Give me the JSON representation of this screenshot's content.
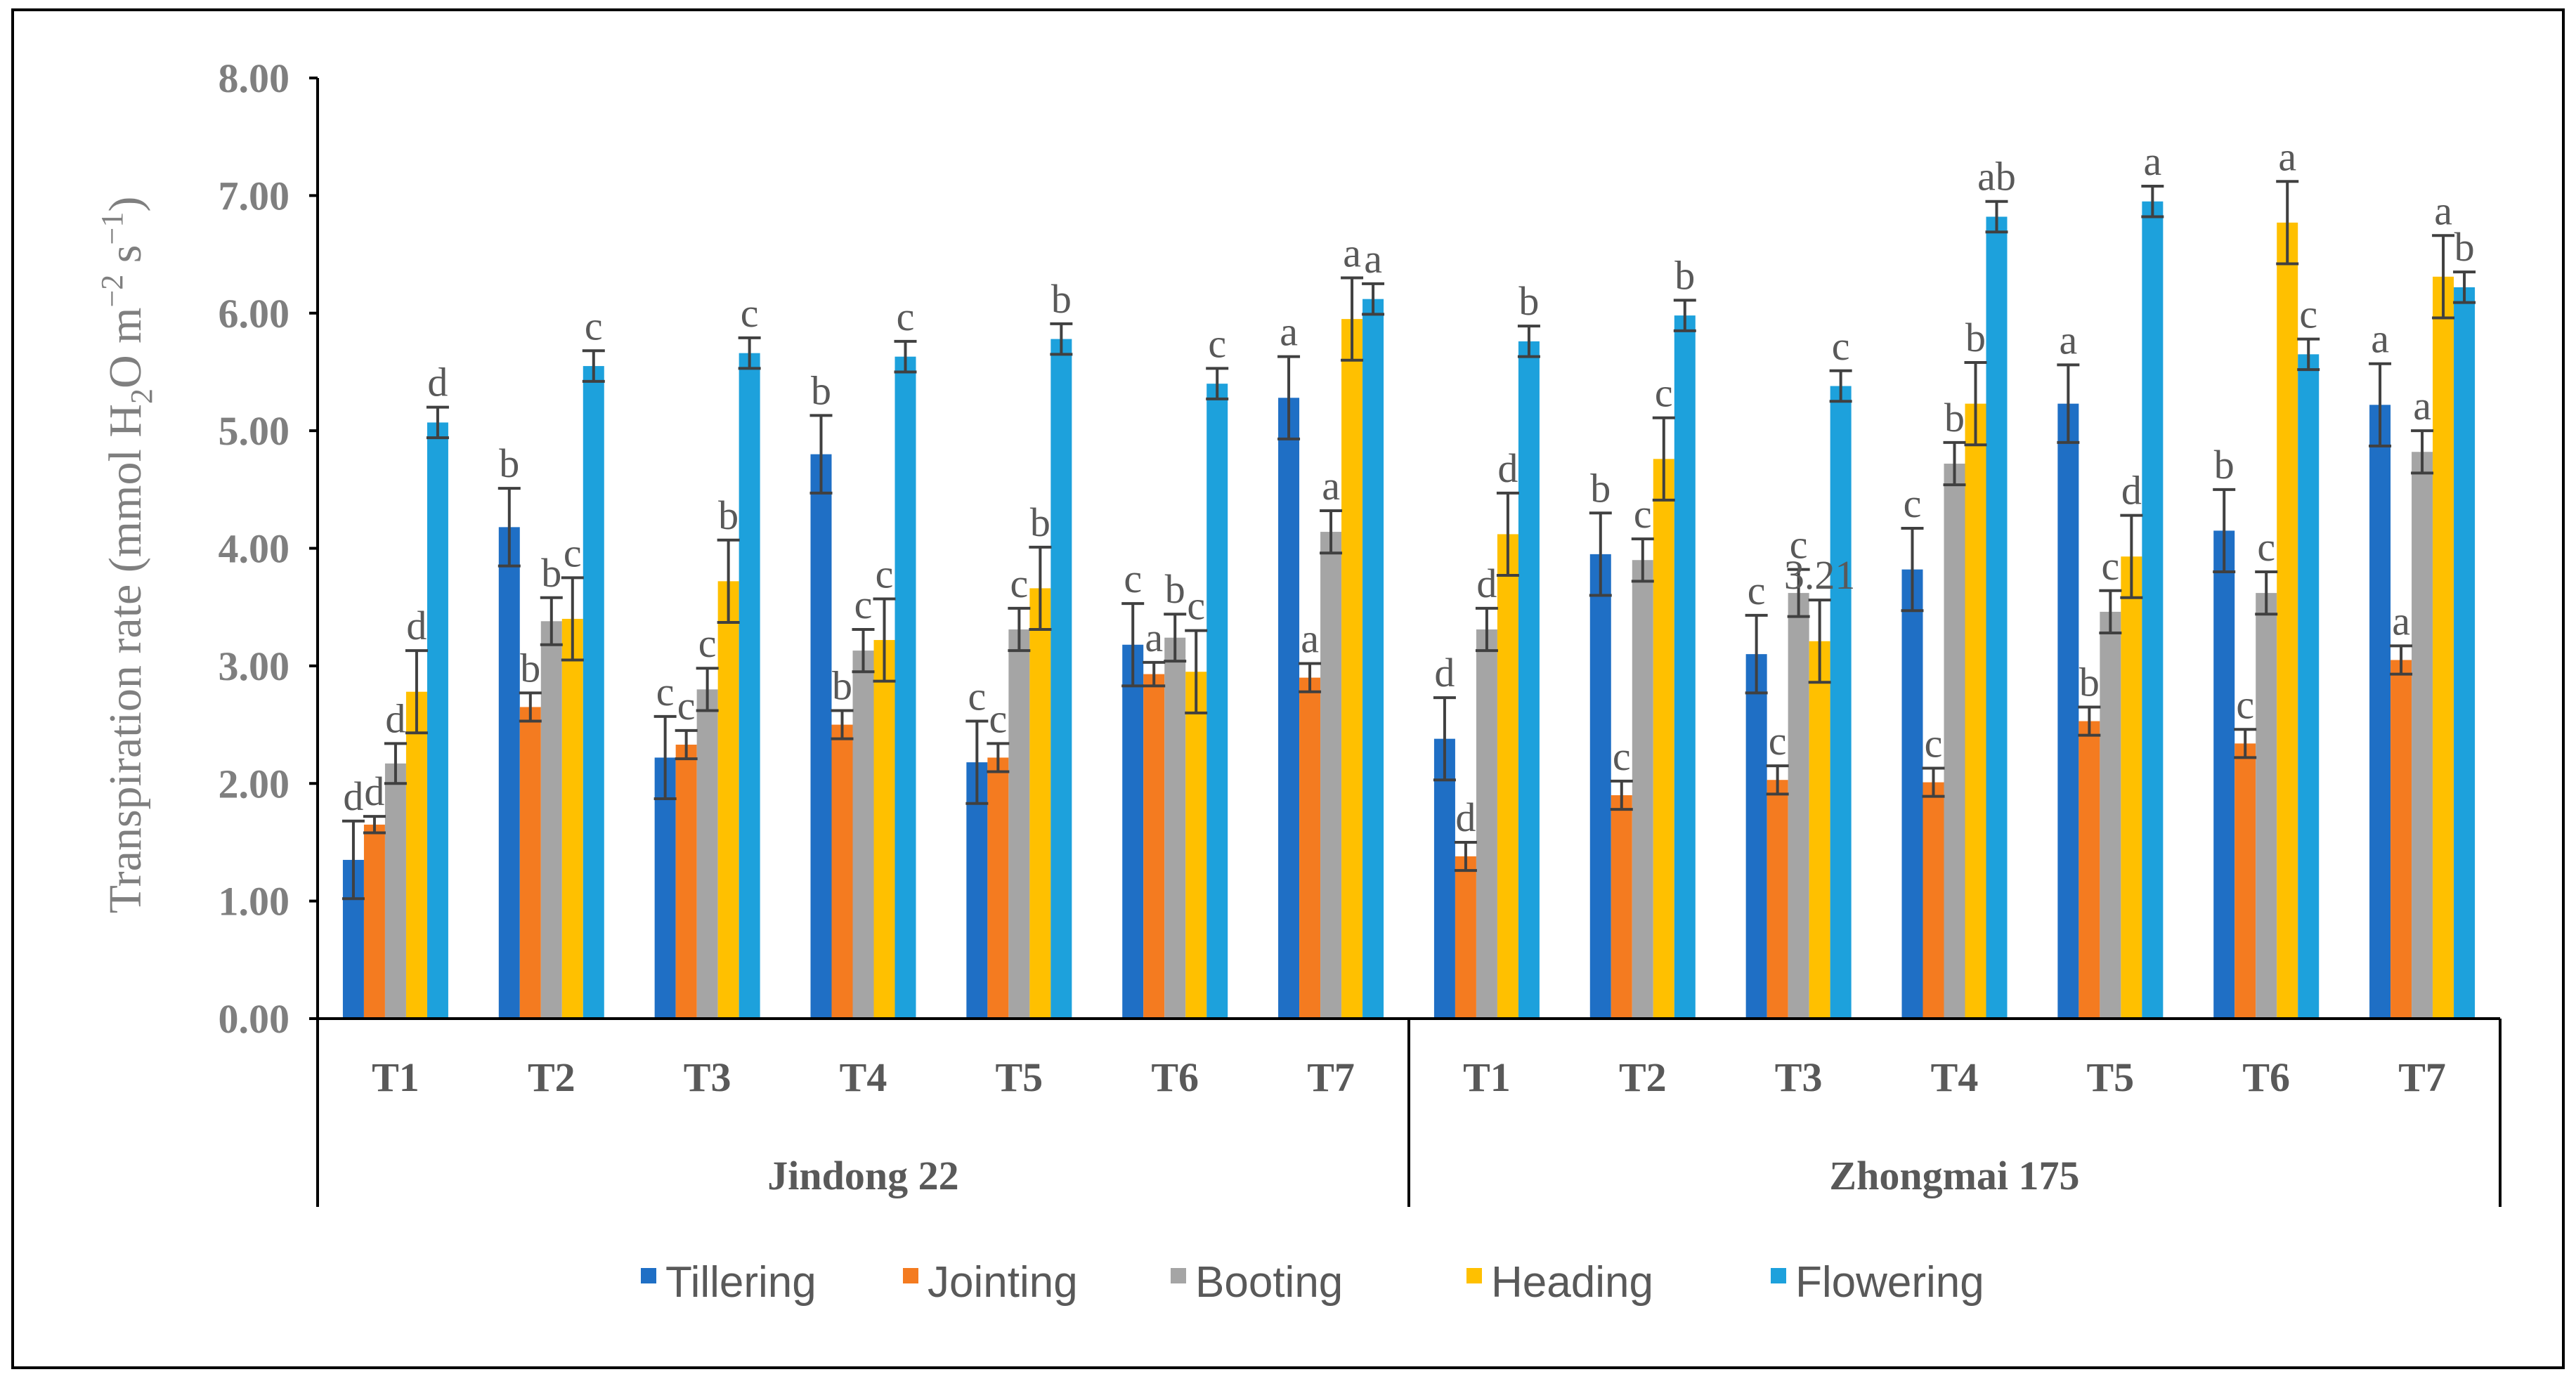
{
  "chart_data": {
    "type": "bar",
    "ylabel_parts": [
      "Transpiration rate (mmol H",
      "2",
      "O m",
      "−2",
      " s",
      "−1",
      ")"
    ],
    "ylim": [
      0,
      8
    ],
    "yticks": [
      "0.00",
      "1.00",
      "2.00",
      "3.00",
      "4.00",
      "5.00",
      "6.00",
      "7.00",
      "8.00"
    ],
    "categories": [
      "T1",
      "T2",
      "T3",
      "T4",
      "T5",
      "T6",
      "T7",
      "T1",
      "T2",
      "T3",
      "T4",
      "T5",
      "T6",
      "T7"
    ],
    "groups": [
      {
        "name": "Jindong 22",
        "count": 7
      },
      {
        "name": "Zhongmai 175",
        "count": 7
      }
    ],
    "legend_position": "bottom",
    "grid": false,
    "series": [
      {
        "name": "Tillering",
        "color": "#1f6fc5",
        "values": [
          1.35,
          4.18,
          2.22,
          4.8,
          2.18,
          3.18,
          5.28,
          2.38,
          3.95,
          3.1,
          3.82,
          5.23,
          4.15,
          5.22
        ],
        "errors": [
          0.33,
          0.33,
          0.35,
          0.33,
          0.35,
          0.35,
          0.35,
          0.35,
          0.35,
          0.33,
          0.35,
          0.33,
          0.35,
          0.35
        ],
        "sig": [
          "d",
          "b",
          "c",
          "b",
          "c",
          "c",
          "a",
          "d",
          "b",
          "c",
          "c",
          "a",
          "b",
          "a"
        ]
      },
      {
        "name": "Jointing",
        "color": "#f47b20",
        "values": [
          1.65,
          2.65,
          2.33,
          2.5,
          2.22,
          2.93,
          2.9,
          1.38,
          1.9,
          2.03,
          2.01,
          2.53,
          2.34,
          3.05
        ],
        "errors": [
          0.07,
          0.12,
          0.12,
          0.12,
          0.12,
          0.1,
          0.12,
          0.12,
          0.12,
          0.12,
          0.12,
          0.12,
          0.12,
          0.12
        ],
        "sig": [
          "d",
          "b",
          "c",
          "b",
          "c",
          "a",
          "a",
          "d",
          "c",
          "c",
          "c",
          "b",
          "c",
          "a"
        ]
      },
      {
        "name": "Booting",
        "color": "#a5a5a5",
        "values": [
          2.17,
          3.38,
          2.8,
          3.13,
          3.31,
          3.24,
          4.14,
          3.31,
          3.9,
          3.62,
          4.72,
          3.46,
          3.62,
          4.82
        ],
        "errors": [
          0.17,
          0.2,
          0.18,
          0.18,
          0.18,
          0.2,
          0.18,
          0.18,
          0.18,
          0.2,
          0.18,
          0.18,
          0.18,
          0.18
        ],
        "sig": [
          "d",
          "b",
          "c",
          "c",
          "c",
          "b",
          "a",
          "d",
          "c",
          "c",
          "b",
          "c",
          "c",
          "a"
        ]
      },
      {
        "name": "Heading",
        "color": "#ffc000",
        "values": [
          2.78,
          3.4,
          3.72,
          3.22,
          3.66,
          2.95,
          5.95,
          4.12,
          4.76,
          3.21,
          5.23,
          3.93,
          6.77,
          6.31
        ],
        "errors": [
          0.35,
          0.35,
          0.35,
          0.35,
          0.35,
          0.35,
          0.35,
          0.35,
          0.35,
          0.35,
          0.35,
          0.35,
          0.35,
          0.35
        ],
        "sig": [
          "d",
          "c",
          "b",
          "c",
          "b",
          "c",
          "a",
          "d",
          "c",
          "3.21",
          "b",
          "d",
          "a",
          "a"
        ]
      },
      {
        "name": "Flowering",
        "color": "#1da1dc",
        "values": [
          5.07,
          5.55,
          5.66,
          5.63,
          5.78,
          5.4,
          6.12,
          5.76,
          5.98,
          5.38,
          6.82,
          6.95,
          5.65,
          6.22
        ],
        "errors": [
          0.13,
          0.13,
          0.13,
          0.13,
          0.13,
          0.13,
          0.13,
          0.13,
          0.13,
          0.13,
          0.13,
          0.13,
          0.13,
          0.13
        ],
        "sig": [
          "d",
          "c",
          "c",
          "c",
          "b",
          "c",
          "a",
          "b",
          "b",
          "c",
          "ab",
          "a",
          "c",
          "b"
        ]
      }
    ]
  }
}
